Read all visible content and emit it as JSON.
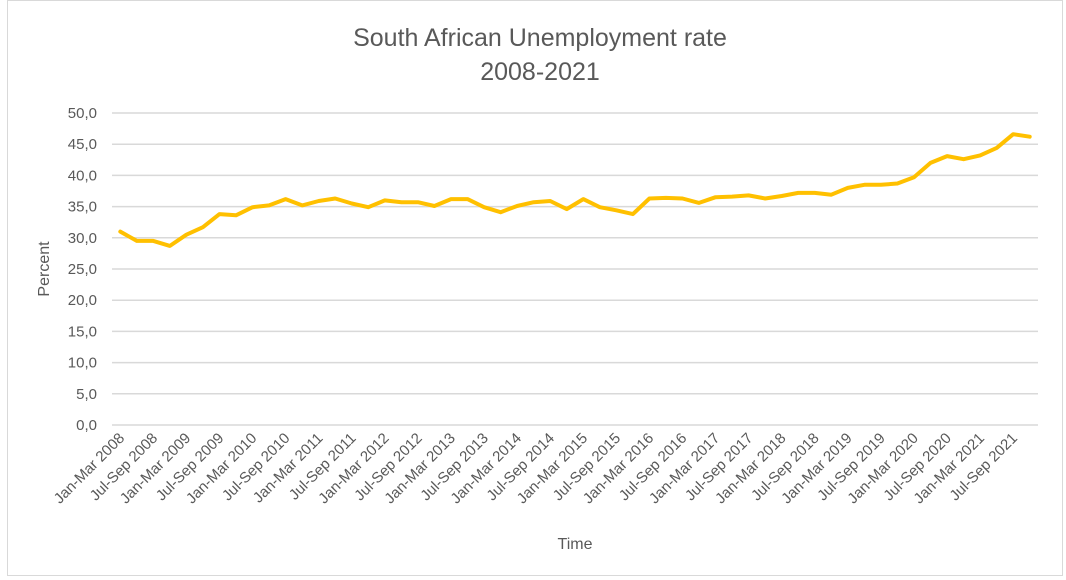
{
  "chart_data": {
    "type": "line",
    "title": [
      "South African Unemployment rate",
      "2008-2021"
    ],
    "xlabel": "Time",
    "ylabel": "Percent",
    "ylim": [
      0,
      50
    ],
    "y_ticks": [
      "0,0",
      "5,0",
      "10,0",
      "15,0",
      "20,0",
      "25,0",
      "30,0",
      "35,0",
      "40,0",
      "45,0",
      "50,0"
    ],
    "grid": true,
    "legend": "none",
    "quarters_per_tick_label": 2,
    "x_tick_labels": [
      "Jan-Mar 2008",
      "Jul-Sep 2008",
      "Jan-Mar 2009",
      "Jul-Sep 2009",
      "Jan-Mar 2010",
      "Jul-Sep 2010",
      "Jan-Mar 2011",
      "Jul-Sep 2011",
      "Jan-Mar 2012",
      "Jul-Sep 2012",
      "Jan-Mar 2013",
      "Jul-Sep 2013",
      "Jan-Mar 2014",
      "Jul-Sep 2014",
      "Jan-Mar 2015",
      "Jul-Sep 2015",
      "Jan-Mar 2016",
      "Jul-Sep 2016",
      "Jan-Mar 2017",
      "Jul-Sep 2017",
      "Jan-Mar 2018",
      "Jul-Sep 2018",
      "Jan-Mar 2019",
      "Jul-Sep 2019",
      "Jan-Mar 2020",
      "Jul-Sep 2020",
      "Jan-Mar 2021",
      "Jul-Sep 2021"
    ],
    "series": [
      {
        "name": "Unemployment rate",
        "color": "#FFC000",
        "values": [
          31.0,
          29.5,
          29.5,
          28.7,
          30.5,
          31.7,
          33.8,
          33.6,
          34.9,
          35.2,
          36.2,
          35.2,
          35.9,
          36.3,
          35.5,
          34.9,
          36.0,
          35.7,
          35.7,
          35.1,
          36.2,
          36.2,
          34.9,
          34.1,
          35.1,
          35.7,
          35.9,
          34.6,
          36.2,
          34.9,
          34.4,
          33.8,
          36.3,
          36.4,
          36.3,
          35.6,
          36.5,
          36.6,
          36.8,
          36.3,
          36.7,
          37.2,
          37.2,
          36.9,
          38.0,
          38.5,
          38.5,
          38.7,
          39.7,
          42.0,
          43.1,
          42.6,
          43.2,
          44.4,
          46.6,
          46.2
        ]
      }
    ]
  }
}
